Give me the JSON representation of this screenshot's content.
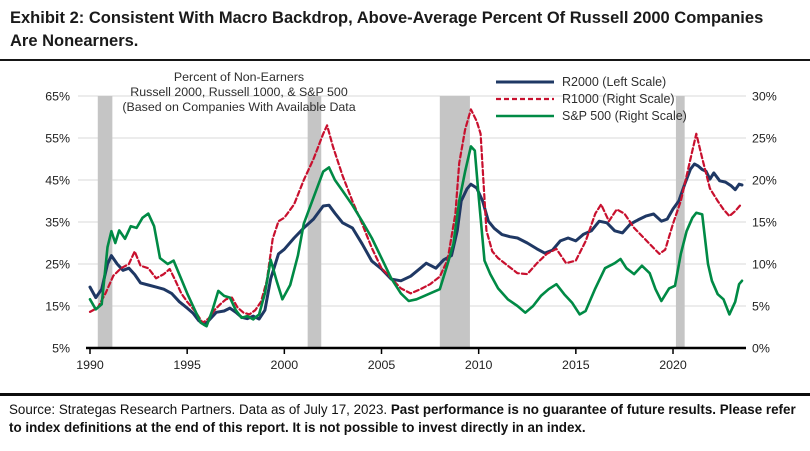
{
  "title": "Exhibit 2: Consistent With Macro Backdrop, Above-Average Percent Of Russell 2000 Companies Are Nonearners.",
  "footer": {
    "source_normal": "Source: Strategas Research Partners. Data as of July 17, 2023. ",
    "disclaimer_bold": "Past performance is no guarantee of future results. Please refer to index definitions at the end of this report. It is not possible to invest directly in an index."
  },
  "chart_data": {
    "type": "line",
    "subtitle_lines": [
      "Percent of Non-Earners",
      "Russell 2000, Russell 1000, & S&P 500",
      "(Based on Companies With Available Data"
    ],
    "left_axis": {
      "tick_labels": [
        "65%",
        "55%",
        "45%",
        "35%",
        "25%",
        "15%",
        "5%"
      ],
      "tick_values": [
        65,
        55,
        45,
        35,
        25,
        15,
        5
      ],
      "min": 5,
      "max": 65
    },
    "right_axis": {
      "tick_labels": [
        "30%",
        "25%",
        "20%",
        "15%",
        "10%",
        "5%",
        "0%"
      ],
      "tick_values": [
        30,
        25,
        20,
        15,
        10,
        5,
        0
      ],
      "min": 0,
      "max": 30
    },
    "x_axis": {
      "tick_labels": [
        "1990",
        "1995",
        "2000",
        "2005",
        "2010",
        "2015",
        "2020"
      ],
      "tick_values": [
        1990,
        1995,
        2000,
        2005,
        2010,
        2015,
        2020
      ],
      "min": 1990,
      "max": 2023.55
    },
    "recessions": [
      [
        1990.4,
        1991.15
      ],
      [
        2001.2,
        2001.9
      ],
      [
        2008.0,
        2009.55
      ],
      [
        2020.15,
        2020.6
      ]
    ],
    "colors": {
      "r2000": "#1f3864",
      "r1000": "#c8102e",
      "sp500": "#008a45",
      "recession_band": "#c5c5c5",
      "gridline": "#d9d9d9",
      "axis": "#000000"
    },
    "series": [
      {
        "name": "R2000 (Left Scale)",
        "scale": "left",
        "color": "#1f3864",
        "dash": "",
        "width": 3,
        "x": [
          1990.0,
          1990.3,
          1990.6,
          1990.9,
          1991.1,
          1991.4,
          1991.7,
          1992.0,
          1992.3,
          1992.6,
          1993.0,
          1993.4,
          1993.8,
          1994.2,
          1994.6,
          1995.0,
          1995.3,
          1995.6,
          1995.9,
          1996.2,
          1996.5,
          1996.9,
          1997.2,
          1997.5,
          1997.8,
          1998.1,
          1998.4,
          1998.7,
          1999.0,
          1999.3,
          1999.7,
          2000.0,
          2000.5,
          2001.0,
          2001.5,
          2002.0,
          2002.3,
          2002.6,
          2003.0,
          2003.5,
          2004.0,
          2004.5,
          2005.0,
          2005.5,
          2006.0,
          2006.5,
          2007.0,
          2007.3,
          2007.8,
          2008.2,
          2008.6,
          2008.9,
          2009.1,
          2009.4,
          2009.6,
          2009.9,
          2010.2,
          2010.5,
          2010.8,
          2011.2,
          2011.6,
          2012.0,
          2012.5,
          2013.0,
          2013.4,
          2013.8,
          2014.2,
          2014.6,
          2015.0,
          2015.4,
          2015.8,
          2016.2,
          2016.6,
          2017.0,
          2017.4,
          2017.8,
          2018.2,
          2018.6,
          2019.0,
          2019.4,
          2019.7,
          2020.0,
          2020.3,
          2020.6,
          2020.9,
          2021.1,
          2021.3,
          2021.5,
          2021.7,
          2021.9,
          2022.1,
          2022.4,
          2022.7,
          2023.0,
          2023.2,
          2023.4,
          2023.55
        ],
        "y": [
          19.5,
          17.0,
          19.0,
          25.0,
          27.0,
          25.0,
          23.5,
          24.0,
          22.5,
          20.5,
          20.0,
          19.5,
          19.0,
          18.0,
          16.0,
          14.5,
          13.3,
          11.5,
          10.5,
          12.0,
          13.5,
          13.8,
          14.5,
          13.5,
          12.3,
          12.0,
          12.6,
          11.9,
          14.0,
          21.5,
          27.4,
          28.5,
          31.2,
          33.6,
          35.7,
          38.8,
          39.0,
          37.1,
          34.8,
          33.6,
          29.8,
          25.7,
          23.8,
          21.4,
          21.0,
          22.1,
          24.0,
          25.2,
          24.0,
          26.0,
          27.0,
          33.0,
          40.0,
          42.9,
          44.0,
          43.1,
          40.0,
          35.2,
          33.5,
          32.0,
          31.5,
          31.2,
          30.0,
          28.6,
          27.6,
          28.3,
          30.5,
          31.2,
          30.5,
          32.1,
          32.9,
          35.2,
          34.8,
          32.9,
          32.4,
          34.5,
          35.5,
          36.4,
          36.9,
          35.2,
          35.7,
          38.1,
          40.0,
          44.0,
          47.6,
          48.8,
          48.3,
          47.5,
          47.1,
          45.2,
          46.7,
          44.8,
          44.5,
          43.6,
          42.7,
          44.0,
          43.8
        ]
      },
      {
        "name": "R1000 (Right Scale)",
        "scale": "right",
        "color": "#c8102e",
        "dash": "5,3",
        "width": 2.2,
        "x": [
          1990.0,
          1990.4,
          1990.8,
          1991.2,
          1991.6,
          1992.0,
          1992.3,
          1992.6,
          1993.0,
          1993.4,
          1993.8,
          1994.1,
          1994.4,
          1994.7,
          1995.0,
          1995.4,
          1995.8,
          1996.1,
          1996.4,
          1996.7,
          1997.0,
          1997.3,
          1997.6,
          1997.9,
          1998.2,
          1998.5,
          1998.8,
          1999.1,
          1999.4,
          1999.7,
          2000.0,
          2000.5,
          2001.0,
          2001.5,
          2002.0,
          2002.2,
          2002.5,
          2003.0,
          2003.5,
          2004.0,
          2004.5,
          2005.0,
          2005.5,
          2006.0,
          2006.5,
          2007.0,
          2007.5,
          2008.0,
          2008.4,
          2008.8,
          2009.0,
          2009.3,
          2009.6,
          2009.9,
          2010.1,
          2010.4,
          2010.7,
          2011.0,
          2011.5,
          2012.0,
          2012.5,
          2013.0,
          2013.5,
          2014.0,
          2014.5,
          2015.0,
          2015.5,
          2016.0,
          2016.3,
          2016.7,
          2017.1,
          2017.5,
          2018.0,
          2018.5,
          2019.0,
          2019.3,
          2019.6,
          2020.0,
          2020.4,
          2020.7,
          2021.0,
          2021.2,
          2021.5,
          2021.9,
          2022.3,
          2022.6,
          2022.9,
          2023.2,
          2023.5
        ],
        "y": [
          4.3,
          4.8,
          6.5,
          8.6,
          9.5,
          10.0,
          11.5,
          9.8,
          9.5,
          8.3,
          8.8,
          9.4,
          8.0,
          6.5,
          5.5,
          4.4,
          3.0,
          3.5,
          4.5,
          5.2,
          5.8,
          6.0,
          4.8,
          4.2,
          4.0,
          4.5,
          5.5,
          8.0,
          13.0,
          15.1,
          15.5,
          17.1,
          20.0,
          22.5,
          25.5,
          26.5,
          24.0,
          20.5,
          17.5,
          14.8,
          11.9,
          9.5,
          8.3,
          7.1,
          6.5,
          7.0,
          7.6,
          8.5,
          10.5,
          16.0,
          22.0,
          26.0,
          28.4,
          27.0,
          25.5,
          14.0,
          11.5,
          10.7,
          9.8,
          8.9,
          8.8,
          10.1,
          11.2,
          11.8,
          10.1,
          10.4,
          12.7,
          16.0,
          17.1,
          15.1,
          16.5,
          16.0,
          14.3,
          13.1,
          11.9,
          11.2,
          11.7,
          14.8,
          17.5,
          20.5,
          23.5,
          25.5,
          22.6,
          19.0,
          17.5,
          16.5,
          15.7,
          16.3,
          17.1
        ]
      },
      {
        "name": "S&P 500 (Right Scale)",
        "scale": "right",
        "color": "#008a45",
        "dash": "",
        "width": 2.6,
        "x": [
          1990.0,
          1990.3,
          1990.6,
          1990.9,
          1991.1,
          1991.3,
          1991.5,
          1991.8,
          1992.1,
          1992.4,
          1992.7,
          1993.0,
          1993.3,
          1993.6,
          1994.0,
          1994.3,
          1994.7,
          1995.0,
          1995.3,
          1995.7,
          1996.0,
          1996.3,
          1996.6,
          1996.9,
          1997.2,
          1997.5,
          1997.8,
          1998.1,
          1998.4,
          1998.7,
          1999.0,
          1999.3,
          1999.6,
          1999.9,
          2000.3,
          2000.7,
          2001.0,
          2001.5,
          2002.0,
          2002.3,
          2002.6,
          2003.0,
          2003.5,
          2004.0,
          2004.5,
          2005.0,
          2005.5,
          2006.0,
          2006.4,
          2006.8,
          2007.2,
          2007.6,
          2008.0,
          2008.4,
          2008.7,
          2009.0,
          2009.3,
          2009.6,
          2009.8,
          2010.0,
          2010.3,
          2010.6,
          2011.0,
          2011.5,
          2012.0,
          2012.4,
          2012.8,
          2013.2,
          2013.6,
          2014.0,
          2014.4,
          2014.8,
          2015.2,
          2015.5,
          2016.0,
          2016.5,
          2017.0,
          2017.3,
          2017.6,
          2018.0,
          2018.4,
          2018.8,
          2019.1,
          2019.4,
          2019.8,
          2020.1,
          2020.4,
          2020.7,
          2021.0,
          2021.2,
          2021.5,
          2021.8,
          2022.0,
          2022.3,
          2022.6,
          2022.9,
          2023.2,
          2023.4,
          2023.55
        ],
        "y": [
          5.8,
          4.6,
          5.2,
          12.0,
          13.9,
          12.5,
          14.0,
          13.0,
          14.5,
          14.3,
          15.5,
          16.0,
          14.5,
          10.7,
          10.0,
          10.4,
          8.2,
          6.5,
          5.0,
          3.0,
          2.6,
          4.5,
          6.8,
          6.2,
          6.0,
          4.5,
          3.6,
          3.8,
          3.4,
          4.0,
          6.5,
          10.5,
          8.0,
          5.8,
          7.5,
          11.0,
          14.8,
          17.9,
          21.0,
          21.5,
          20.0,
          18.7,
          17.0,
          15.1,
          13.1,
          10.7,
          8.3,
          6.5,
          5.6,
          5.8,
          6.2,
          6.6,
          7.0,
          10.0,
          12.4,
          17.5,
          21.0,
          24.0,
          23.5,
          18.0,
          10.4,
          8.8,
          7.1,
          5.8,
          5.0,
          4.2,
          5.0,
          6.2,
          7.0,
          7.6,
          6.4,
          5.4,
          4.0,
          4.4,
          7.1,
          9.5,
          10.1,
          10.6,
          9.5,
          8.8,
          9.8,
          8.9,
          7.0,
          5.6,
          7.1,
          7.4,
          11.2,
          13.9,
          15.5,
          16.1,
          15.9,
          10.0,
          8.0,
          6.4,
          5.8,
          4.0,
          5.5,
          7.6,
          8.0
        ]
      }
    ]
  }
}
